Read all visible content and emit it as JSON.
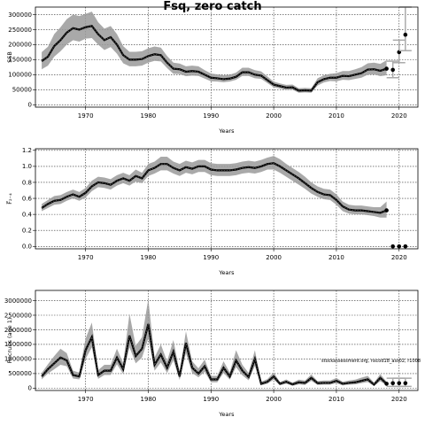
{
  "title": "Fsq, zero catch",
  "annotation": "stockassessment.org, nscod18_ass02, r1008",
  "chart_data": [
    {
      "type": "line",
      "ylabel": "SSB",
      "xlabel": "Years",
      "xlim": [
        1962,
        2023
      ],
      "ylim": [
        -8000,
        325000
      ],
      "x_ticks": [
        1970,
        1980,
        1990,
        2000,
        2010,
        2020
      ],
      "y_ticks": [
        0,
        50000,
        100000,
        150000,
        200000,
        250000,
        300000
      ],
      "y_tick_labels": [
        "0",
        "50000",
        "100000",
        "150000",
        "200000",
        "250000",
        "300000"
      ],
      "grid": true,
      "series": [
        {
          "name": "estimate",
          "x": [
            1963,
            1964,
            1965,
            1966,
            1967,
            1968,
            1969,
            1970,
            1971,
            1972,
            1973,
            1974,
            1975,
            1976,
            1977,
            1978,
            1979,
            1980,
            1981,
            1982,
            1983,
            1984,
            1985,
            1986,
            1987,
            1988,
            1989,
            1990,
            1991,
            1992,
            1993,
            1994,
            1995,
            1996,
            1997,
            1998,
            1999,
            2000,
            2001,
            2002,
            2003,
            2004,
            2005,
            2006,
            2007,
            2008,
            2009,
            2010,
            2011,
            2012,
            2013,
            2014,
            2015,
            2016,
            2017,
            2018
          ],
          "values": [
            145000,
            160000,
            195000,
            215000,
            240000,
            255000,
            250000,
            258000,
            262000,
            235000,
            215000,
            225000,
            200000,
            165000,
            150000,
            150000,
            152000,
            162000,
            168000,
            165000,
            140000,
            120000,
            118000,
            110000,
            112000,
            110000,
            100000,
            90000,
            88000,
            85000,
            87000,
            93000,
            108000,
            108000,
            100000,
            97000,
            82000,
            67000,
            62000,
            57000,
            58000,
            47000,
            48000,
            47000,
            75000,
            85000,
            90000,
            90000,
            96000,
            95000,
            100000,
            105000,
            117000,
            118000,
            113000,
            120000
          ],
          "lower": [
            118000,
            130000,
            160000,
            178000,
            200000,
            215000,
            210000,
            220000,
            222000,
            200000,
            182000,
            192000,
            170000,
            138000,
            128000,
            128000,
            130000,
            140000,
            146000,
            144000,
            122000,
            103000,
            102000,
            95000,
            97000,
            96000,
            87000,
            78000,
            77000,
            75000,
            77000,
            83000,
            96000,
            96000,
            88000,
            86000,
            72000,
            58000,
            54000,
            49000,
            50000,
            40000,
            41000,
            40000,
            64000,
            74000,
            79000,
            78000,
            83000,
            82000,
            86000,
            90000,
            100000,
            101000,
            95000,
            98000
          ],
          "upper": [
            175000,
            193000,
            235000,
            258000,
            285000,
            300000,
            295000,
            302000,
            310000,
            275000,
            253000,
            262000,
            235000,
            195000,
            176000,
            176000,
            178000,
            188000,
            194000,
            190000,
            162000,
            140000,
            137000,
            128000,
            130000,
            128000,
            115000,
            104000,
            101000,
            98000,
            100000,
            107000,
            123000,
            123000,
            115000,
            111000,
            94000,
            77000,
            71000,
            66000,
            67000,
            55000,
            56000,
            55000,
            88000,
            98000,
            103000,
            105000,
            112000,
            112000,
            118000,
            125000,
            138000,
            140000,
            136000,
            148000
          ]
        },
        {
          "name": "forecast",
          "x": [
            2019,
            2020,
            2021
          ],
          "values": [
            116000,
            175000,
            233000
          ],
          "lower": [
            90000,
            140000,
            180000
          ],
          "upper": [
            145000,
            215000,
            325000
          ]
        }
      ]
    },
    {
      "type": "line",
      "ylabel": "F̅₂₋₄",
      "xlabel": "Years",
      "xlim": [
        1962,
        2023
      ],
      "ylim": [
        -0.03,
        1.22
      ],
      "x_ticks": [
        1970,
        1980,
        1990,
        2000,
        2010,
        2020
      ],
      "y_ticks": [
        0.0,
        0.2,
        0.4,
        0.6,
        0.8,
        1.0,
        1.2
      ],
      "y_tick_labels": [
        "0.0",
        "0.2",
        "0.4",
        "0.6",
        "0.8",
        "1.0",
        "1.2"
      ],
      "grid": true,
      "series": [
        {
          "name": "estimate",
          "x": [
            1963,
            1964,
            1965,
            1966,
            1967,
            1968,
            1969,
            1970,
            1971,
            1972,
            1973,
            1974,
            1975,
            1976,
            1977,
            1978,
            1979,
            1980,
            1981,
            1982,
            1983,
            1984,
            1985,
            1986,
            1987,
            1988,
            1989,
            1990,
            1991,
            1992,
            1993,
            1994,
            1995,
            1996,
            1997,
            1998,
            1999,
            2000,
            2001,
            2002,
            2003,
            2004,
            2005,
            2006,
            2007,
            2008,
            2009,
            2010,
            2011,
            2012,
            2013,
            2014,
            2015,
            2016,
            2017,
            2018
          ],
          "values": [
            0.48,
            0.53,
            0.57,
            0.58,
            0.62,
            0.65,
            0.62,
            0.67,
            0.75,
            0.8,
            0.79,
            0.77,
            0.82,
            0.85,
            0.82,
            0.88,
            0.85,
            0.95,
            0.98,
            1.03,
            1.03,
            0.98,
            0.95,
            0.99,
            0.97,
            1.0,
            1.0,
            0.96,
            0.95,
            0.95,
            0.95,
            0.96,
            0.98,
            0.99,
            0.98,
            1.0,
            1.03,
            1.04,
            1.0,
            0.95,
            0.9,
            0.85,
            0.79,
            0.73,
            0.68,
            0.65,
            0.64,
            0.58,
            0.5,
            0.46,
            0.45,
            0.45,
            0.44,
            0.43,
            0.42,
            0.45
          ],
          "lower": [
            0.44,
            0.48,
            0.52,
            0.53,
            0.57,
            0.6,
            0.57,
            0.61,
            0.69,
            0.74,
            0.73,
            0.71,
            0.76,
            0.79,
            0.76,
            0.81,
            0.79,
            0.88,
            0.91,
            0.95,
            0.95,
            0.91,
            0.88,
            0.92,
            0.9,
            0.93,
            0.93,
            0.89,
            0.88,
            0.88,
            0.88,
            0.89,
            0.91,
            0.92,
            0.91,
            0.93,
            0.96,
            0.96,
            0.92,
            0.87,
            0.82,
            0.77,
            0.72,
            0.66,
            0.62,
            0.59,
            0.58,
            0.52,
            0.44,
            0.41,
            0.4,
            0.4,
            0.39,
            0.38,
            0.36,
            0.36
          ],
          "upper": [
            0.53,
            0.58,
            0.63,
            0.64,
            0.68,
            0.71,
            0.68,
            0.73,
            0.82,
            0.87,
            0.86,
            0.84,
            0.89,
            0.92,
            0.89,
            0.96,
            0.92,
            1.03,
            1.06,
            1.12,
            1.12,
            1.06,
            1.03,
            1.07,
            1.05,
            1.08,
            1.08,
            1.04,
            1.03,
            1.03,
            1.03,
            1.04,
            1.06,
            1.07,
            1.06,
            1.08,
            1.11,
            1.13,
            1.09,
            1.03,
            0.98,
            0.93,
            0.87,
            0.8,
            0.75,
            0.72,
            0.71,
            0.65,
            0.56,
            0.52,
            0.51,
            0.51,
            0.5,
            0.49,
            0.49,
            0.56
          ]
        },
        {
          "name": "forecast",
          "x": [
            2019,
            2020,
            2021
          ],
          "values": [
            0.0,
            0.0,
            0.0
          ],
          "lower": [
            0.0,
            0.0,
            0.0
          ],
          "upper": [
            0.0,
            0.0,
            0.0
          ]
        }
      ]
    },
    {
      "type": "line",
      "ylabel": "Recruits (age 1)",
      "xlabel": "Years",
      "xlim": [
        1962,
        2023
      ],
      "ylim": [
        -80000,
        3350000
      ],
      "x_ticks": [
        1970,
        1980,
        1990,
        2000,
        2010,
        2020
      ],
      "y_ticks": [
        0,
        500000,
        1000000,
        1500000,
        2000000,
        2500000,
        3000000
      ],
      "y_tick_labels": [
        "0",
        "500000",
        "1000000",
        "1500000",
        "2000000",
        "2500000",
        "3000000"
      ],
      "grid": true,
      "series": [
        {
          "name": "estimate",
          "x": [
            1963,
            1964,
            1965,
            1966,
            1967,
            1968,
            1969,
            1970,
            1971,
            1972,
            1973,
            1974,
            1975,
            1976,
            1977,
            1978,
            1979,
            1980,
            1981,
            1982,
            1983,
            1984,
            1985,
            1986,
            1987,
            1988,
            1989,
            1990,
            1991,
            1992,
            1993,
            1994,
            1995,
            1996,
            1997,
            1998,
            1999,
            2000,
            2001,
            2002,
            2003,
            2004,
            2005,
            2006,
            2007,
            2008,
            2009,
            2010,
            2011,
            2012,
            2013,
            2014,
            2015,
            2016,
            2017,
            2018
          ],
          "values": [
            400000,
            650000,
            850000,
            1050000,
            950000,
            450000,
            400000,
            1300000,
            1750000,
            450000,
            600000,
            600000,
            1050000,
            650000,
            1800000,
            1100000,
            1350000,
            2200000,
            800000,
            1150000,
            700000,
            1250000,
            400000,
            1550000,
            700000,
            500000,
            750000,
            300000,
            300000,
            700000,
            400000,
            950000,
            600000,
            380000,
            1000000,
            150000,
            220000,
            400000,
            150000,
            220000,
            130000,
            200000,
            180000,
            350000,
            170000,
            180000,
            180000,
            250000,
            150000,
            180000,
            200000,
            250000,
            300000,
            120000,
            350000,
            150000
          ],
          "lower": [
            300000,
            500000,
            650000,
            800000,
            750000,
            330000,
            300000,
            1000000,
            1400000,
            320000,
            450000,
            450000,
            820000,
            480000,
            1400000,
            850000,
            1050000,
            1700000,
            600000,
            880000,
            520000,
            950000,
            280000,
            1200000,
            520000,
            370000,
            560000,
            200000,
            200000,
            520000,
            290000,
            720000,
            440000,
            270000,
            760000,
            100000,
            150000,
            290000,
            100000,
            150000,
            80000,
            130000,
            110000,
            250000,
            110000,
            120000,
            120000,
            170000,
            95000,
            120000,
            130000,
            170000,
            210000,
            70000,
            240000,
            90000
          ],
          "upper": [
            520000,
            820000,
            1100000,
            1350000,
            1200000,
            600000,
            530000,
            1700000,
            2250000,
            620000,
            800000,
            800000,
            1350000,
            860000,
            2550000,
            1450000,
            1750000,
            3050000,
            1050000,
            1500000,
            920000,
            1650000,
            550000,
            1950000,
            920000,
            680000,
            980000,
            420000,
            420000,
            920000,
            540000,
            1300000,
            800000,
            520000,
            1300000,
            220000,
            310000,
            540000,
            210000,
            300000,
            190000,
            290000,
            260000,
            470000,
            240000,
            260000,
            260000,
            350000,
            220000,
            260000,
            290000,
            360000,
            420000,
            190000,
            480000,
            220000
          ]
        },
        {
          "name": "forecast",
          "x": [
            2019,
            2020,
            2021
          ],
          "values": [
            170000,
            170000,
            170000
          ],
          "lower": [
            60000,
            60000,
            60000
          ],
          "upper": [
            340000,
            340000,
            340000
          ]
        }
      ]
    }
  ]
}
